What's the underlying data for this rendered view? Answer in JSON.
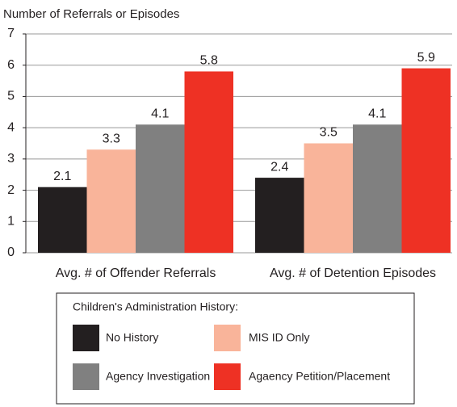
{
  "chart_data": {
    "type": "bar",
    "y_label": "Number of Referrals or Episodes",
    "categories": [
      "Avg. # of Offender Referrals",
      "Avg. # of Detention Episodes"
    ],
    "series": [
      {
        "name": "No History",
        "color": "#231f20",
        "values": [
          2.1,
          2.4
        ]
      },
      {
        "name": "MIS ID Only",
        "color": "#f9b49a",
        "values": [
          3.3,
          3.5
        ]
      },
      {
        "name": "Agency Investigation",
        "color": "#808080",
        "values": [
          4.1,
          4.1
        ]
      },
      {
        "name": "Agaency Petition/Placement",
        "color": "#ee3124",
        "values": [
          5.8,
          5.9
        ]
      }
    ],
    "legend_title": "Children's Administration History:",
    "ylim": [
      0,
      7
    ],
    "yticks": [
      0,
      1,
      2,
      3,
      4,
      5,
      6,
      7
    ],
    "grid": true
  }
}
